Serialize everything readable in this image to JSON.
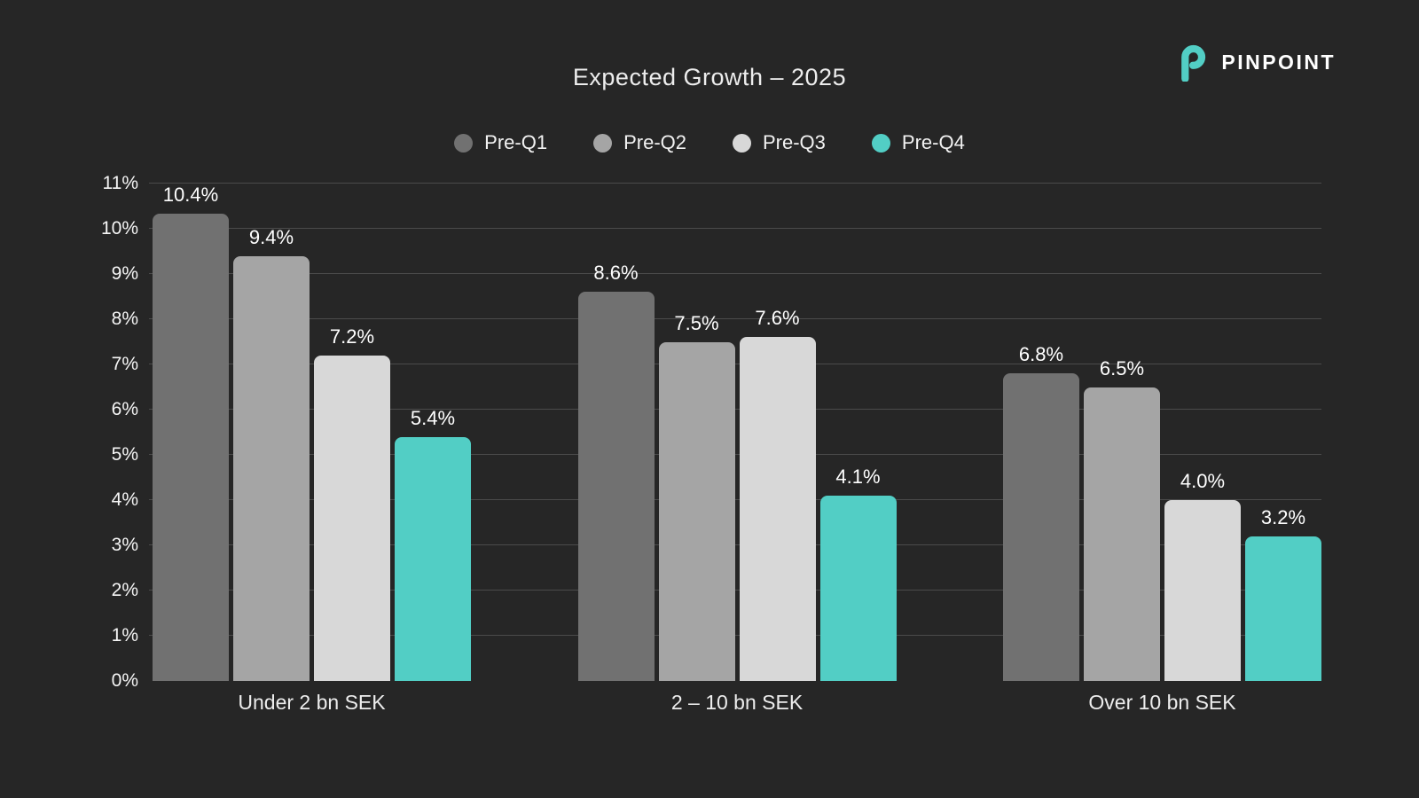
{
  "page": {
    "background": "#262626"
  },
  "header": {
    "title": "Expected Growth – 2025"
  },
  "brand": {
    "name": "PINPOINT",
    "accent_color": "#52cec5",
    "text_color": "#ffffff"
  },
  "chart_data": {
    "type": "bar",
    "title": "Expected Growth – 2025",
    "categories": [
      "Under 2 bn SEK",
      "2 – 10 bn SEK",
      "Over 10 bn SEK"
    ],
    "series": [
      {
        "name": "Pre-Q1",
        "color": "#717171",
        "values": [
          10.4,
          8.6,
          6.8
        ],
        "labels": [
          "10.4%",
          "8.6%",
          "6.8%"
        ]
      },
      {
        "name": "Pre-Q2",
        "color": "#a5a5a5",
        "values": [
          9.4,
          7.5,
          6.5
        ],
        "labels": [
          "9.4%",
          "7.5%",
          "6.5%"
        ]
      },
      {
        "name": "Pre-Q3",
        "color": "#d8d8d8",
        "values": [
          7.2,
          7.6,
          4.0
        ],
        "labels": [
          "7.2%",
          "7.6%",
          "4.0%"
        ]
      },
      {
        "name": "Pre-Q4",
        "color": "#52cec5",
        "values": [
          5.4,
          4.1,
          3.2
        ],
        "labels": [
          "5.4%",
          "4.1%",
          "3.2%"
        ]
      }
    ],
    "value_suffix": "%",
    "ylim": [
      0,
      11
    ],
    "y_ticks": [
      "0%",
      "1%",
      "2%",
      "3%",
      "4%",
      "5%",
      "6%",
      "7%",
      "8%",
      "9%",
      "10%",
      "11%"
    ],
    "grid": true,
    "legend_position": "top",
    "xlabel": "",
    "ylabel": ""
  }
}
